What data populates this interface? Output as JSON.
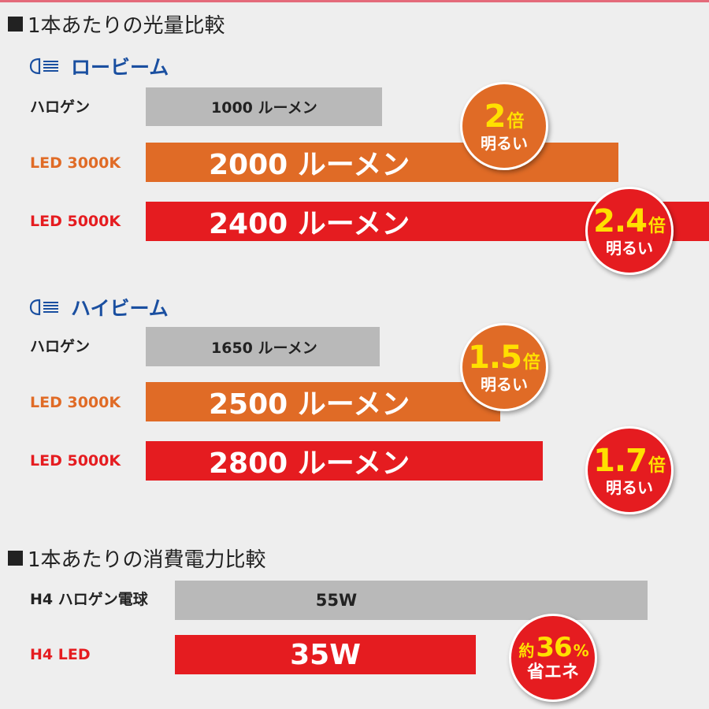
{
  "colors": {
    "halogen": "#b9b9b9",
    "led3000k": "#e06b26",
    "led5000k": "#e51c20",
    "heading_blue": "#1a4fa0",
    "badge_text": "#ffe000"
  },
  "sections": {
    "light_title": "1本あたりの光量比較",
    "power_title": "1本あたりの消費電力比較"
  },
  "chart_data": [
    {
      "type": "bar",
      "title": "ロービーム",
      "unit": "ルーメン",
      "categories": [
        "ハロゲン",
        "LED 3000K",
        "LED 5000K"
      ],
      "values": [
        1000,
        2000,
        2400
      ],
      "bar_labels": [
        "1000 ルーメン",
        "2000 ルーメン",
        "2400 ルーメン"
      ],
      "badges": [
        {
          "num": "2",
          "unit": "倍",
          "text": "明るい"
        },
        {
          "num": "2.4",
          "unit": "倍",
          "text": "明るい"
        }
      ]
    },
    {
      "type": "bar",
      "title": "ハイビーム",
      "unit": "ルーメン",
      "categories": [
        "ハロゲン",
        "LED 3000K",
        "LED 5000K"
      ],
      "values": [
        1650,
        2500,
        2800
      ],
      "bar_labels": [
        "1650 ルーメン",
        "2500 ルーメン",
        "2800 ルーメン"
      ],
      "badges": [
        {
          "num": "1.5",
          "unit": "倍",
          "text": "明るい"
        },
        {
          "num": "1.7",
          "unit": "倍",
          "text": "明るい"
        }
      ]
    },
    {
      "type": "bar",
      "title": "",
      "unit": "W",
      "categories": [
        "H4 ハロゲン電球",
        "H4 LED"
      ],
      "values": [
        55,
        35
      ],
      "bar_labels": [
        "55W",
        "35W"
      ],
      "badges": [
        {
          "prefix": "約",
          "num": "36",
          "unit": "%",
          "text": "省エネ"
        }
      ]
    }
  ]
}
